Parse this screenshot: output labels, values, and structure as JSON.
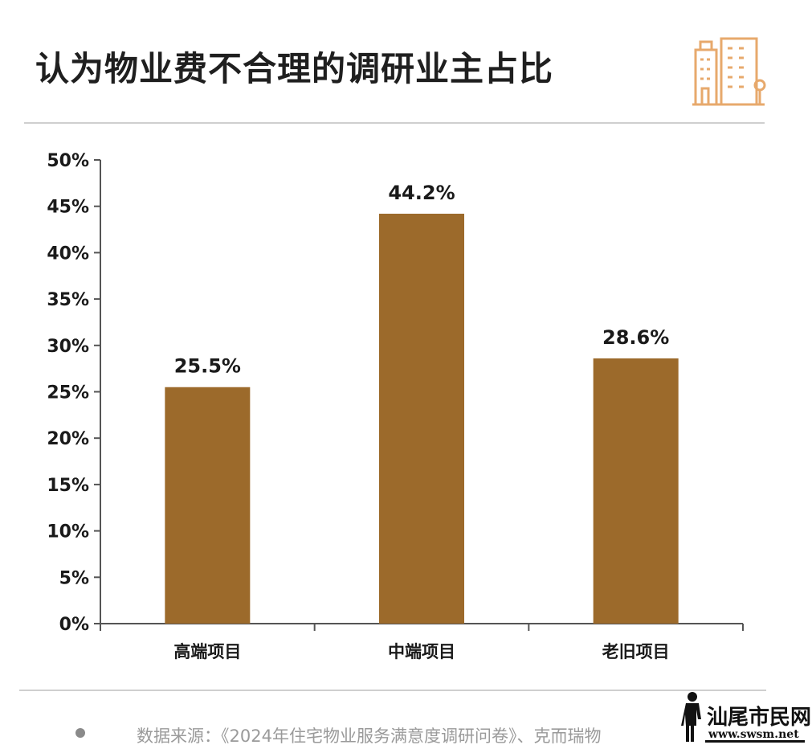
{
  "title": "认为物业费不合理的调研业主占比",
  "icons": {
    "header": "building-icon",
    "watermark": "person-silhouette-icon"
  },
  "colors": {
    "bar": "#9c6a2b",
    "accent": "#e7a96c"
  },
  "chart_data": {
    "type": "bar",
    "title": "认为物业费不合理的调研业主占比",
    "categories": [
      "高端项目",
      "中端项目",
      "老旧项目"
    ],
    "values": [
      25.5,
      44.2,
      28.6
    ],
    "data_labels": [
      "25.5%",
      "44.2%",
      "28.6%"
    ],
    "yticks": [
      "0%",
      "5%",
      "10%",
      "15%",
      "20%",
      "25%",
      "30%",
      "35%",
      "40%",
      "45%",
      "50%"
    ],
    "ylim": [
      0,
      50
    ],
    "grid": false,
    "legend": "none"
  },
  "source": {
    "text": "数据来源：《2024年住宅物业服务满意度调研问卷》、克而瑞物"
  },
  "watermark": {
    "name": "汕尾市民网",
    "url": "www.swsm.net"
  }
}
